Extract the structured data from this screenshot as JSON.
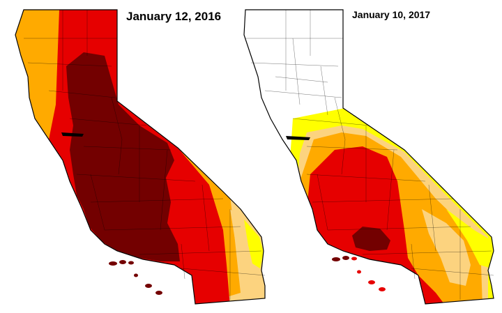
{
  "maps": {
    "left": {
      "date": "January 12, 2016"
    },
    "right": {
      "date": "January 10, 2017"
    }
  },
  "colors": {
    "none": "#ffffff",
    "d0": "#ffff00",
    "d1": "#fcd37f",
    "d2": "#ffaa00",
    "d3": "#e60000",
    "d4": "#730000",
    "outline": "#000000"
  }
}
